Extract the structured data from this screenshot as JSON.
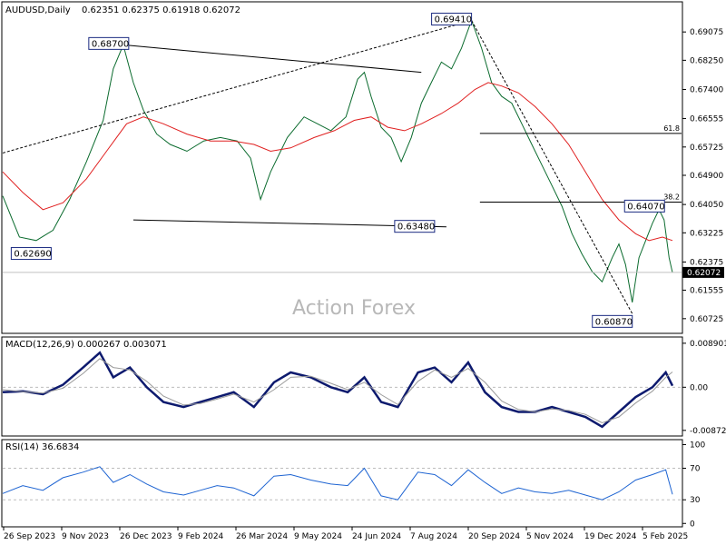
{
  "chart_data": [
    {
      "type": "line",
      "panel": "price",
      "title": "AUDUSD,Daily",
      "ohlc_text": "0.62351 0.62375 0.61918 0.62072",
      "watermark": "Action Forex",
      "ylim": [
        0.6035,
        0.699
      ],
      "y_ticks": [
        "0.69075",
        "0.68250",
        "0.67400",
        "0.66555",
        "0.65725",
        "0.64900",
        "0.64050",
        "0.63225",
        "0.62375",
        "0.61555",
        "0.60725"
      ],
      "last_price": "0.62072",
      "x_labels": [
        "26 Sep 2023",
        "9 Nov 2023",
        "26 Dec 2023",
        "9 Feb 2024",
        "26 Mar 2024",
        "9 May 2024",
        "24 Jun 2024",
        "7 Aug 2024",
        "20 Sep 2024",
        "5 Nov 2024",
        "19 Dec 2024",
        "5 Feb 2025"
      ],
      "series": [
        {
          "values": [
            [
              0,
              0.643
            ],
            [
              10,
              0.631
            ],
            [
              20,
              0.63
            ],
            [
              30,
              0.633
            ],
            [
              40,
              0.642
            ],
            [
              50,
              0.653
            ],
            [
              60,
              0.665
            ],
            [
              66,
              0.68
            ],
            [
              72,
              0.687
            ],
            [
              78,
              0.676
            ],
            [
              84,
              0.668
            ],
            [
              92,
              0.661
            ],
            [
              100,
              0.658
            ],
            [
              110,
              0.656
            ],
            [
              120,
              0.659
            ],
            [
              130,
              0.66
            ],
            [
              140,
              0.659
            ],
            [
              148,
              0.654
            ],
            [
              154,
              0.642
            ],
            [
              160,
              0.65
            ],
            [
              170,
              0.66
            ],
            [
              180,
              0.666
            ],
            [
              188,
              0.664
            ],
            [
              196,
              0.662
            ],
            [
              205,
              0.666
            ],
            [
              212,
              0.677
            ],
            [
              216,
              0.679
            ],
            [
              220,
              0.672
            ],
            [
              226,
              0.663
            ],
            [
              232,
              0.66
            ],
            [
              238,
              0.653
            ],
            [
              244,
              0.66
            ],
            [
              250,
              0.67
            ],
            [
              256,
              0.676
            ],
            [
              262,
              0.682
            ],
            [
              268,
              0.68
            ],
            [
              274,
              0.686
            ],
            [
              280,
              0.6941
            ],
            [
              286,
              0.686
            ],
            [
              292,
              0.676
            ],
            [
              298,
              0.672
            ],
            [
              304,
              0.67
            ],
            [
              310,
              0.664
            ],
            [
              316,
              0.658
            ],
            [
              322,
              0.652
            ],
            [
              328,
              0.646
            ],
            [
              334,
              0.64
            ],
            [
              340,
              0.632
            ],
            [
              346,
              0.626
            ],
            [
              352,
              0.621
            ],
            [
              358,
              0.618
            ],
            [
              364,
              0.625
            ],
            [
              368,
              0.629
            ],
            [
              372,
              0.623
            ],
            [
              376,
              0.612
            ],
            [
              380,
              0.625
            ],
            [
              384,
              0.63
            ],
            [
              388,
              0.635
            ],
            [
              392,
              0.639
            ],
            [
              395,
              0.636
            ],
            [
              398,
              0.625
            ],
            [
              400,
              0.6207
            ]
          ]
        },
        {
          "values": [
            [
              0,
              0.65
            ],
            [
              12,
              0.644
            ],
            [
              24,
              0.639
            ],
            [
              36,
              0.641
            ],
            [
              50,
              0.648
            ],
            [
              62,
              0.656
            ],
            [
              74,
              0.664
            ],
            [
              84,
              0.666
            ],
            [
              96,
              0.664
            ],
            [
              110,
              0.661
            ],
            [
              124,
              0.659
            ],
            [
              138,
              0.659
            ],
            [
              150,
              0.658
            ],
            [
              160,
              0.656
            ],
            [
              172,
              0.657
            ],
            [
              186,
              0.66
            ],
            [
              198,
              0.662
            ],
            [
              210,
              0.665
            ],
            [
              220,
              0.666
            ],
            [
              230,
              0.663
            ],
            [
              240,
              0.662
            ],
            [
              250,
              0.664
            ],
            [
              262,
              0.667
            ],
            [
              272,
              0.67
            ],
            [
              282,
              0.674
            ],
            [
              290,
              0.676
            ],
            [
              298,
              0.675
            ],
            [
              308,
              0.673
            ],
            [
              318,
              0.669
            ],
            [
              328,
              0.664
            ],
            [
              338,
              0.658
            ],
            [
              348,
              0.65
            ],
            [
              358,
              0.642
            ],
            [
              368,
              0.636
            ],
            [
              378,
              0.632
            ],
            [
              386,
              0.63
            ],
            [
              394,
              0.631
            ],
            [
              400,
              0.63
            ]
          ]
        }
      ],
      "annotations": [
        {
          "label": "0.68700",
          "x": 72,
          "y": 0.687
        },
        {
          "label": "0.69410",
          "x": 280,
          "y": 0.6941
        },
        {
          "label": "0.62690",
          "x": 4,
          "y": 0.6269
        },
        {
          "label": "0.63480",
          "x": 233,
          "y": 0.6348
        },
        {
          "label": "0.64070",
          "x": 392,
          "y": 0.6407
        },
        {
          "label": "0.60870",
          "x": 376,
          "y": 0.6087
        }
      ],
      "fib_levels": [
        {
          "label": "61.8",
          "y": 0.6612
        },
        {
          "label": "38.2",
          "y": 0.6412
        }
      ]
    },
    {
      "type": "line",
      "panel": "macd",
      "title": "MACD(12,26,9) 0.000267 0.003071",
      "ylim": [
        -0.0095,
        0.0098
      ],
      "y_ticks": [
        "0.008901",
        "0.00",
        "-0.008729"
      ],
      "series": [
        {
          "values": [
            [
              0,
              -0.001
            ],
            [
              12,
              -0.0008
            ],
            [
              24,
              -0.0014
            ],
            [
              36,
              0.0005
            ],
            [
              48,
              0.004
            ],
            [
              58,
              0.007
            ],
            [
              66,
              0.002
            ],
            [
              76,
              0.004
            ],
            [
              86,
              0.0
            ],
            [
              96,
              -0.003
            ],
            [
              108,
              -0.004
            ],
            [
              118,
              -0.003
            ],
            [
              128,
              -0.002
            ],
            [
              138,
              -0.001
            ],
            [
              150,
              -0.004
            ],
            [
              162,
              0.001
            ],
            [
              172,
              0.003
            ],
            [
              184,
              0.002
            ],
            [
              196,
              0.0
            ],
            [
              206,
              -0.001
            ],
            [
              216,
              0.002
            ],
            [
              226,
              -0.003
            ],
            [
              236,
              -0.004
            ],
            [
              248,
              0.003
            ],
            [
              258,
              0.004
            ],
            [
              268,
              0.001
            ],
            [
              278,
              0.005
            ],
            [
              288,
              -0.001
            ],
            [
              298,
              -0.004
            ],
            [
              308,
              -0.005
            ],
            [
              318,
              -0.005
            ],
            [
              328,
              -0.004
            ],
            [
              338,
              -0.005
            ],
            [
              348,
              -0.006
            ],
            [
              358,
              -0.008
            ],
            [
              368,
              -0.005
            ],
            [
              378,
              -0.002
            ],
            [
              388,
              0.0
            ],
            [
              396,
              0.003
            ],
            [
              400,
              0.0003
            ]
          ]
        },
        {
          "values": [
            [
              0,
              -0.0005
            ],
            [
              12,
              -0.0009
            ],
            [
              24,
              -0.0012
            ],
            [
              36,
              -0.0002
            ],
            [
              48,
              0.0028
            ],
            [
              58,
              0.0058
            ],
            [
              66,
              0.004
            ],
            [
              76,
              0.0035
            ],
            [
              86,
              0.0012
            ],
            [
              96,
              -0.0018
            ],
            [
              108,
              -0.0036
            ],
            [
              118,
              -0.0033
            ],
            [
              128,
              -0.0024
            ],
            [
              138,
              -0.0014
            ],
            [
              150,
              -0.003
            ],
            [
              162,
              -0.0005
            ],
            [
              172,
              0.002
            ],
            [
              184,
              0.0022
            ],
            [
              196,
              0.0008
            ],
            [
              206,
              -0.0005
            ],
            [
              216,
              0.001
            ],
            [
              226,
              -0.0015
            ],
            [
              236,
              -0.0035
            ],
            [
              248,
              0.0012
            ],
            [
              258,
              0.0035
            ],
            [
              268,
              0.002
            ],
            [
              278,
              0.0038
            ],
            [
              288,
              0.001
            ],
            [
              298,
              -0.0028
            ],
            [
              308,
              -0.0045
            ],
            [
              318,
              -0.005
            ],
            [
              328,
              -0.0044
            ],
            [
              338,
              -0.0047
            ],
            [
              348,
              -0.0055
            ],
            [
              358,
              -0.0072
            ],
            [
              368,
              -0.006
            ],
            [
              378,
              -0.0032
            ],
            [
              388,
              -0.0008
            ],
            [
              396,
              0.002
            ],
            [
              400,
              0.0031
            ]
          ]
        }
      ]
    },
    {
      "type": "line",
      "panel": "rsi",
      "title": "RSI(14) 36.6834",
      "ylim": [
        -2,
        104
      ],
      "y_ticks": [
        "100",
        "70",
        "30",
        "0"
      ],
      "series": [
        {
          "values": [
            [
              0,
              38
            ],
            [
              12,
              48
            ],
            [
              24,
              42
            ],
            [
              36,
              58
            ],
            [
              48,
              65
            ],
            [
              58,
              72
            ],
            [
              66,
              52
            ],
            [
              76,
              62
            ],
            [
              86,
              50
            ],
            [
              96,
              40
            ],
            [
              108,
              36
            ],
            [
              118,
              42
            ],
            [
              128,
              48
            ],
            [
              138,
              45
            ],
            [
              150,
              35
            ],
            [
              162,
              60
            ],
            [
              172,
              62
            ],
            [
              184,
              55
            ],
            [
              196,
              50
            ],
            [
              206,
              48
            ],
            [
              216,
              70
            ],
            [
              226,
              35
            ],
            [
              236,
              30
            ],
            [
              248,
              65
            ],
            [
              258,
              62
            ],
            [
              268,
              48
            ],
            [
              278,
              68
            ],
            [
              288,
              52
            ],
            [
              298,
              38
            ],
            [
              308,
              45
            ],
            [
              318,
              40
            ],
            [
              328,
              38
            ],
            [
              338,
              42
            ],
            [
              348,
              36
            ],
            [
              358,
              30
            ],
            [
              368,
              40
            ],
            [
              378,
              55
            ],
            [
              388,
              62
            ],
            [
              396,
              68
            ],
            [
              400,
              37
            ]
          ]
        }
      ]
    }
  ]
}
